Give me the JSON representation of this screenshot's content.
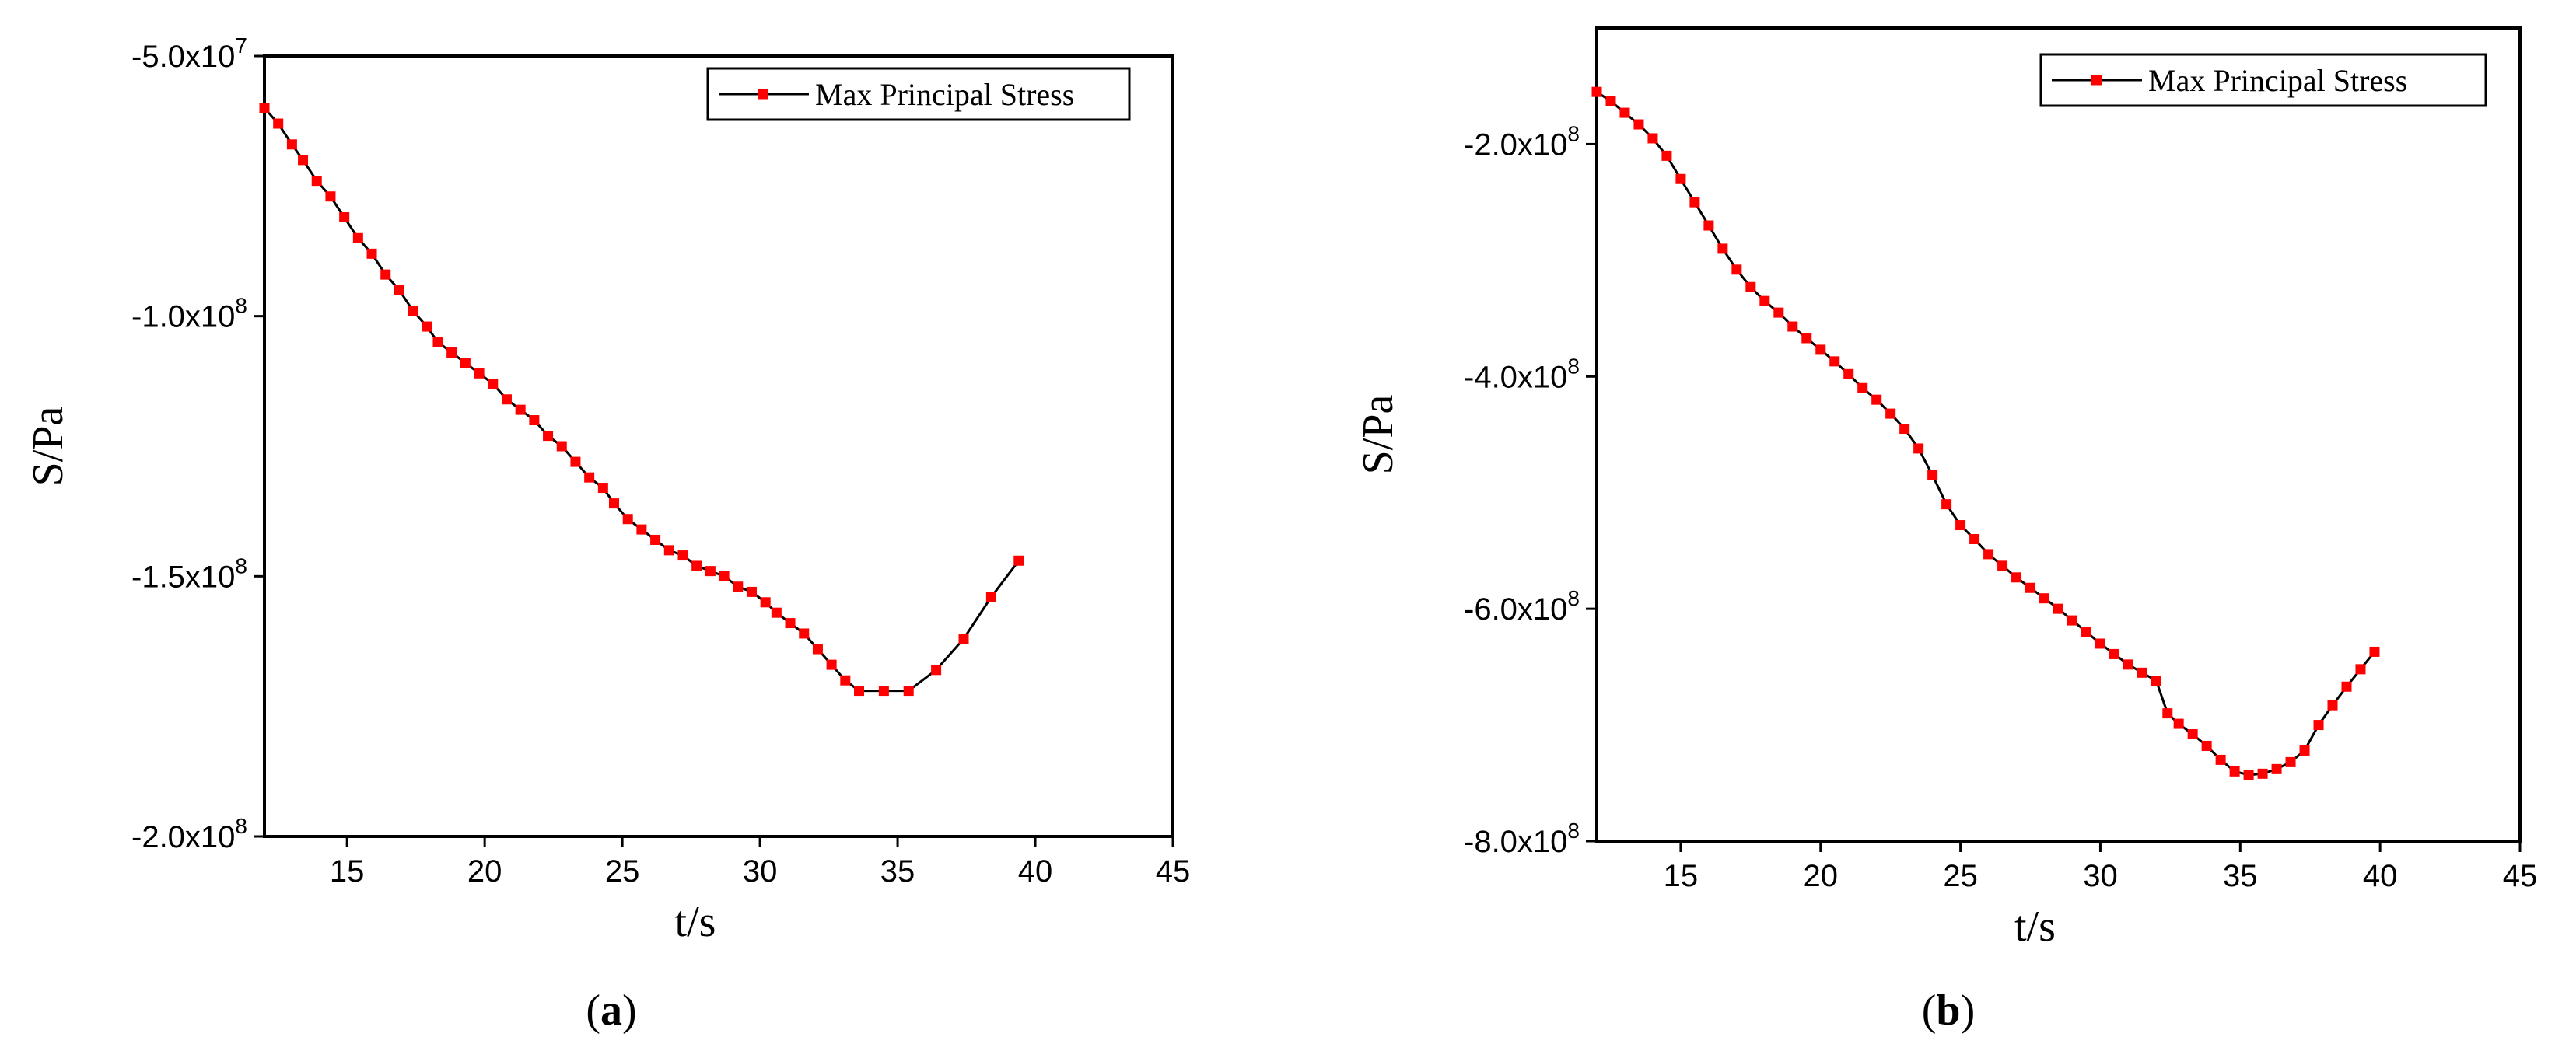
{
  "chart_data": [
    {
      "type": "line",
      "panel_label": "a",
      "xlabel": "t/s",
      "ylabel": "S/Pa",
      "xlim": [
        12,
        45
      ],
      "ylim": [
        -200000000,
        -50000000
      ],
      "x_ticks": [
        15,
        20,
        25,
        30,
        35,
        40,
        45
      ],
      "x_tick_labels": [
        "15",
        "20",
        "25",
        "30",
        "35",
        "40",
        "45"
      ],
      "y_ticks": [
        -50000000,
        -100000000,
        -150000000,
        -200000000
      ],
      "y_tick_labels": [
        {
          "mantissa": "-5.0x10",
          "exp": "7"
        },
        {
          "mantissa": "-1.0x10",
          "exp": "8"
        },
        {
          "mantissa": "-1.5x10",
          "exp": "8"
        },
        {
          "mantissa": "-2.0x10",
          "exp": "8"
        }
      ],
      "legend": {
        "position": "top-right",
        "entries": [
          "Max Principal Stress"
        ]
      },
      "series": [
        {
          "name": "Max Principal Stress",
          "x": [
            12.0,
            12.5,
            13.0,
            13.4,
            13.9,
            14.4,
            14.9,
            15.4,
            15.9,
            16.4,
            16.9,
            17.4,
            17.9,
            18.3,
            18.8,
            19.3,
            19.8,
            20.3,
            20.8,
            21.3,
            21.8,
            22.3,
            22.8,
            23.3,
            23.8,
            24.3,
            24.7,
            25.2,
            25.7,
            26.2,
            26.7,
            27.2,
            27.7,
            28.2,
            28.7,
            29.2,
            29.7,
            30.2,
            30.6,
            31.1,
            31.6,
            32.1,
            32.6,
            33.1,
            33.6,
            34.5,
            35.4,
            36.4,
            37.4,
            38.4,
            39.4
          ],
          "y": [
            -60000000,
            -63000000,
            -67000000,
            -70000000,
            -74000000,
            -77000000,
            -81000000,
            -85000000,
            -88000000,
            -92000000,
            -95000000,
            -99000000,
            -102000000,
            -105000000,
            -107000000,
            -109000000,
            -111000000,
            -113000000,
            -116000000,
            -118000000,
            -120000000,
            -123000000,
            -125000000,
            -128000000,
            -131000000,
            -133000000,
            -136000000,
            -139000000,
            -141000000,
            -143000000,
            -145000000,
            -146000000,
            -148000000,
            -149000000,
            -150000000,
            -152000000,
            -153000000,
            -155000000,
            -157000000,
            -159000000,
            -161000000,
            -164000000,
            -167000000,
            -170000000,
            -172000000,
            -172000000,
            -172000000,
            -168000000,
            -162000000,
            -154000000,
            -147000000
          ]
        }
      ]
    },
    {
      "type": "line",
      "panel_label": "b",
      "xlabel": "t/s",
      "ylabel": "S/Pa",
      "xlim": [
        12,
        45
      ],
      "ylim": [
        -800000000,
        -100000000
      ],
      "x_ticks": [
        15,
        20,
        25,
        30,
        35,
        40,
        45
      ],
      "x_tick_labels": [
        "15",
        "20",
        "25",
        "30",
        "35",
        "40",
        "45"
      ],
      "y_ticks": [
        -200000000,
        -400000000,
        -600000000,
        -800000000
      ],
      "y_tick_labels": [
        {
          "mantissa": "-2.0x10",
          "exp": "8"
        },
        {
          "mantissa": "-4.0x10",
          "exp": "8"
        },
        {
          "mantissa": "-6.0x10",
          "exp": "8"
        },
        {
          "mantissa": "-8.0x10",
          "exp": "8"
        }
      ],
      "legend": {
        "position": "top-right",
        "entries": [
          "Max Principal Stress"
        ]
      },
      "series": [
        {
          "name": "Max Principal Stress",
          "x": [
            12.0,
            12.5,
            13.0,
            13.5,
            14.0,
            14.5,
            15.0,
            15.5,
            16.0,
            16.5,
            17.0,
            17.5,
            18.0,
            18.5,
            19.0,
            19.5,
            20.0,
            20.5,
            21.0,
            21.5,
            22.0,
            22.5,
            23.0,
            23.5,
            24.0,
            24.5,
            25.0,
            25.5,
            26.0,
            26.5,
            27.0,
            27.5,
            28.0,
            28.5,
            29.0,
            29.5,
            30.0,
            30.5,
            31.0,
            31.5,
            32.0,
            32.4,
            32.8,
            33.3,
            33.8,
            34.3,
            34.8,
            35.3,
            35.8,
            36.3,
            36.8,
            37.3,
            37.8,
            38.3,
            38.8,
            39.3,
            39.8
          ],
          "y": [
            -155000000,
            -163000000,
            -173000000,
            -183000000,
            -195000000,
            -210000000,
            -230000000,
            -250000000,
            -270000000,
            -290000000,
            -308000000,
            -323000000,
            -335000000,
            -345000000,
            -357000000,
            -367000000,
            -377000000,
            -387000000,
            -398000000,
            -410000000,
            -420000000,
            -432000000,
            -445000000,
            -462000000,
            -485000000,
            -510000000,
            -528000000,
            -540000000,
            -553000000,
            -563000000,
            -573000000,
            -582000000,
            -591000000,
            -600000000,
            -610000000,
            -620000000,
            -630000000,
            -639000000,
            -648000000,
            -655000000,
            -662000000,
            -690000000,
            -699000000,
            -708000000,
            -718000000,
            -730000000,
            -740000000,
            -743000000,
            -742000000,
            -738000000,
            -732000000,
            -722000000,
            -700000000,
            -683000000,
            -667000000,
            -652000000,
            -637000000
          ]
        }
      ]
    }
  ]
}
